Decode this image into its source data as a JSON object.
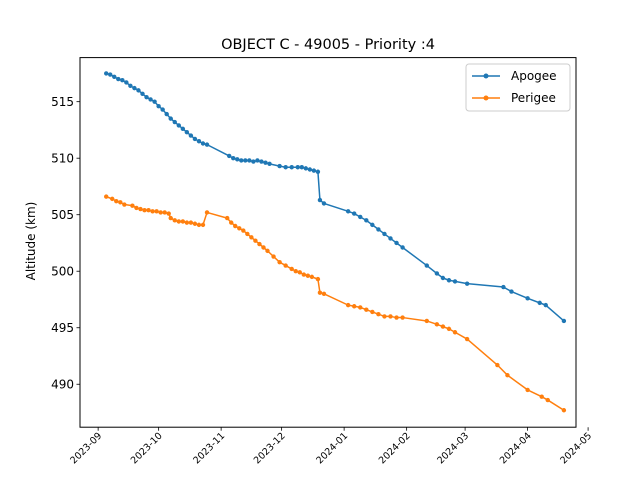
{
  "chart_data": {
    "type": "line",
    "title": "OBJECT C - 49005 - Priority :4",
    "xlabel": "",
    "ylabel": "Altitude (km)",
    "x_axis": "date",
    "xlim": [
      "2023-08-23",
      "2024-04-25"
    ],
    "ylim": [
      486.2,
      518.9
    ],
    "x_ticks": [
      "2023-09",
      "2023-10",
      "2023-11",
      "2023-12",
      "2024-01",
      "2024-02",
      "2024-03",
      "2024-04",
      "2024-05"
    ],
    "y_ticks": [
      490,
      495,
      500,
      505,
      510,
      515
    ],
    "legend_position": "top-right",
    "grid": false,
    "series": [
      {
        "name": "Apogee",
        "color": "#1f77b4",
        "points": [
          [
            "2023-09-05",
            517.5
          ],
          [
            "2023-09-07",
            517.4
          ],
          [
            "2023-09-09",
            517.2
          ],
          [
            "2023-09-11",
            517.0
          ],
          [
            "2023-09-13",
            516.9
          ],
          [
            "2023-09-15",
            516.7
          ],
          [
            "2023-09-17",
            516.4
          ],
          [
            "2023-09-19",
            516.2
          ],
          [
            "2023-09-21",
            516.0
          ],
          [
            "2023-09-23",
            515.7
          ],
          [
            "2023-09-25",
            515.4
          ],
          [
            "2023-09-27",
            515.2
          ],
          [
            "2023-09-29",
            515.0
          ],
          [
            "2023-10-01",
            514.6
          ],
          [
            "2023-10-03",
            514.3
          ],
          [
            "2023-10-05",
            513.9
          ],
          [
            "2023-10-07",
            513.5
          ],
          [
            "2023-10-09",
            513.2
          ],
          [
            "2023-10-11",
            512.9
          ],
          [
            "2023-10-13",
            512.6
          ],
          [
            "2023-10-15",
            512.3
          ],
          [
            "2023-10-17",
            512.0
          ],
          [
            "2023-10-19",
            511.7
          ],
          [
            "2023-10-21",
            511.5
          ],
          [
            "2023-10-23",
            511.3
          ],
          [
            "2023-10-25",
            511.2
          ],
          [
            "2023-11-05",
            510.2
          ],
          [
            "2023-11-07",
            510.0
          ],
          [
            "2023-11-09",
            509.9
          ],
          [
            "2023-11-11",
            509.8
          ],
          [
            "2023-11-13",
            509.8
          ],
          [
            "2023-11-15",
            509.8
          ],
          [
            "2023-11-17",
            509.7
          ],
          [
            "2023-11-19",
            509.8
          ],
          [
            "2023-11-21",
            509.7
          ],
          [
            "2023-11-23",
            509.6
          ],
          [
            "2023-11-25",
            509.5
          ],
          [
            "2023-11-30",
            509.3
          ],
          [
            "2023-12-03",
            509.2
          ],
          [
            "2023-12-06",
            509.2
          ],
          [
            "2023-12-09",
            509.2
          ],
          [
            "2023-12-11",
            509.2
          ],
          [
            "2023-12-13",
            509.1
          ],
          [
            "2023-12-15",
            509.0
          ],
          [
            "2023-12-17",
            508.9
          ],
          [
            "2023-12-19",
            508.8
          ],
          [
            "2023-12-20",
            506.3
          ],
          [
            "2023-12-22",
            506.0
          ],
          [
            "2024-01-03",
            505.3
          ],
          [
            "2024-01-06",
            505.1
          ],
          [
            "2024-01-09",
            504.8
          ],
          [
            "2024-01-12",
            504.5
          ],
          [
            "2024-01-15",
            504.1
          ],
          [
            "2024-01-18",
            503.7
          ],
          [
            "2024-01-21",
            503.3
          ],
          [
            "2024-01-24",
            502.9
          ],
          [
            "2024-01-27",
            502.5
          ],
          [
            "2024-01-30",
            502.1
          ],
          [
            "2024-02-11",
            500.5
          ],
          [
            "2024-02-16",
            499.8
          ],
          [
            "2024-02-19",
            499.4
          ],
          [
            "2024-02-22",
            499.2
          ],
          [
            "2024-02-25",
            499.1
          ],
          [
            "2024-03-02",
            498.9
          ],
          [
            "2024-03-20",
            498.6
          ],
          [
            "2024-03-24",
            498.2
          ],
          [
            "2024-04-01",
            497.6
          ],
          [
            "2024-04-07",
            497.2
          ],
          [
            "2024-04-10",
            497.0
          ],
          [
            "2024-04-19",
            495.6
          ]
        ]
      },
      {
        "name": "Perigee",
        "color": "#ff7f0e",
        "points": [
          [
            "2023-09-05",
            506.6
          ],
          [
            "2023-09-08",
            506.4
          ],
          [
            "2023-09-10",
            506.2
          ],
          [
            "2023-09-12",
            506.1
          ],
          [
            "2023-09-14",
            505.9
          ],
          [
            "2023-09-18",
            505.8
          ],
          [
            "2023-09-20",
            505.6
          ],
          [
            "2023-09-22",
            505.5
          ],
          [
            "2023-09-24",
            505.4
          ],
          [
            "2023-09-26",
            505.4
          ],
          [
            "2023-09-28",
            505.3
          ],
          [
            "2023-09-30",
            505.3
          ],
          [
            "2023-10-02",
            505.2
          ],
          [
            "2023-10-04",
            505.2
          ],
          [
            "2023-10-06",
            505.1
          ],
          [
            "2023-10-07",
            504.7
          ],
          [
            "2023-10-09",
            504.5
          ],
          [
            "2023-10-11",
            504.4
          ],
          [
            "2023-10-13",
            504.4
          ],
          [
            "2023-10-15",
            504.3
          ],
          [
            "2023-10-17",
            504.3
          ],
          [
            "2023-10-19",
            504.2
          ],
          [
            "2023-10-21",
            504.1
          ],
          [
            "2023-10-23",
            504.1
          ],
          [
            "2023-10-25",
            505.2
          ],
          [
            "2023-11-04",
            504.7
          ],
          [
            "2023-11-06",
            504.3
          ],
          [
            "2023-11-08",
            504.0
          ],
          [
            "2023-11-10",
            503.8
          ],
          [
            "2023-11-12",
            503.6
          ],
          [
            "2023-11-14",
            503.3
          ],
          [
            "2023-11-16",
            503.0
          ],
          [
            "2023-11-18",
            502.7
          ],
          [
            "2023-11-20",
            502.4
          ],
          [
            "2023-11-22",
            502.1
          ],
          [
            "2023-11-24",
            501.8
          ],
          [
            "2023-11-27",
            501.3
          ],
          [
            "2023-11-30",
            500.8
          ],
          [
            "2023-12-03",
            500.5
          ],
          [
            "2023-12-06",
            500.2
          ],
          [
            "2023-12-08",
            500.0
          ],
          [
            "2023-12-10",
            499.9
          ],
          [
            "2023-12-12",
            499.7
          ],
          [
            "2023-12-14",
            499.6
          ],
          [
            "2023-12-16",
            499.5
          ],
          [
            "2023-12-19",
            499.3
          ],
          [
            "2023-12-20",
            498.1
          ],
          [
            "2023-12-22",
            498.0
          ],
          [
            "2024-01-03",
            497.0
          ],
          [
            "2024-01-06",
            496.9
          ],
          [
            "2024-01-09",
            496.8
          ],
          [
            "2024-01-12",
            496.6
          ],
          [
            "2024-01-15",
            496.4
          ],
          [
            "2024-01-18",
            496.2
          ],
          [
            "2024-01-21",
            496.0
          ],
          [
            "2024-01-24",
            496.0
          ],
          [
            "2024-01-27",
            495.9
          ],
          [
            "2024-01-30",
            495.9
          ],
          [
            "2024-02-11",
            495.6
          ],
          [
            "2024-02-16",
            495.3
          ],
          [
            "2024-02-19",
            495.1
          ],
          [
            "2024-02-22",
            494.9
          ],
          [
            "2024-02-25",
            494.6
          ],
          [
            "2024-03-02",
            494.0
          ],
          [
            "2024-03-17",
            491.7
          ],
          [
            "2024-03-22",
            490.8
          ],
          [
            "2024-04-01",
            489.5
          ],
          [
            "2024-04-08",
            488.9
          ],
          [
            "2024-04-11",
            488.6
          ],
          [
            "2024-04-19",
            487.7
          ]
        ]
      }
    ]
  }
}
